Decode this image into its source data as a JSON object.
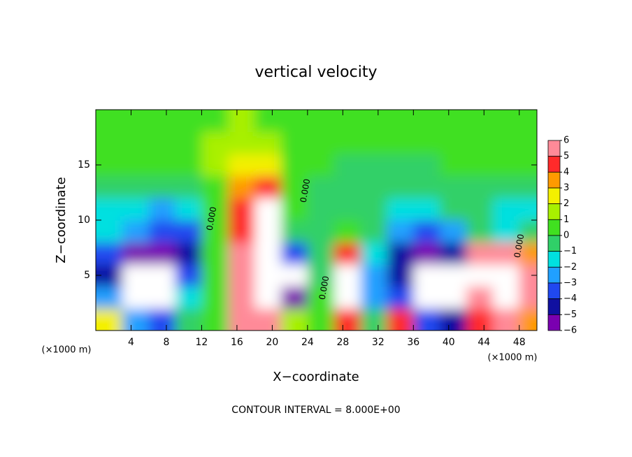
{
  "chart_data": {
    "type": "contour",
    "title": "vertical velocity",
    "x_label": "X−coordinate",
    "y_label": "Z−coordinate",
    "x_unit": "(×1000 m)",
    "footer": "CONTOUR INTERVAL = 8.000E+00",
    "contour_label": "0.000",
    "xlim": [
      0,
      50
    ],
    "ylim": [
      0,
      20
    ],
    "xticks": [
      4,
      8,
      12,
      16,
      20,
      24,
      28,
      32,
      36,
      40,
      44,
      48
    ],
    "yticks": [
      5,
      10,
      15
    ],
    "x": [
      1.5,
      4.5,
      7.5,
      10.5,
      13.5,
      16.5,
      19.5,
      22.5,
      25.5,
      28.5,
      31.5,
      34.5,
      37.5,
      40.5,
      43.5,
      46.5,
      49.5
    ],
    "y": [
      1,
      3,
      5,
      7,
      9,
      11,
      13,
      15,
      17,
      19
    ],
    "z": [
      [
        2,
        -3,
        -4,
        -1,
        0,
        5,
        5,
        1,
        0,
        4,
        -1,
        4,
        -4,
        -5,
        4,
        6,
        3
      ],
      [
        -3,
        -8,
        -7,
        -2,
        0,
        6,
        9,
        -6,
        0,
        7,
        -3,
        -4,
        -8,
        -8,
        6,
        9,
        5
      ],
      [
        -5,
        -9,
        -8,
        -4,
        0,
        6,
        10,
        -7,
        -1,
        8,
        -3,
        -5,
        -9,
        -9,
        7,
        9,
        5
      ],
      [
        -4,
        -6,
        -6,
        -5,
        0,
        5,
        10,
        -4,
        -1,
        4,
        -2,
        -5,
        -6,
        -5,
        5,
        6,
        3
      ],
      [
        -2,
        -3,
        -4,
        -4,
        0,
        4,
        10,
        -1,
        -1,
        0,
        -1,
        -3,
        -4,
        -3,
        -1,
        -2,
        -1
      ],
      [
        -2,
        -2,
        -3,
        -2,
        0,
        4,
        9,
        0,
        -1,
        -1,
        -1,
        -2,
        -2,
        -1,
        -1,
        -2,
        -2
      ],
      [
        -1,
        -1,
        -1,
        -1,
        0,
        3,
        4,
        0,
        -1,
        -1,
        -1,
        -1,
        -1,
        -1,
        -1,
        -1,
        -1
      ],
      [
        0,
        0,
        0,
        0,
        1,
        2,
        2,
        0,
        0,
        -1,
        -1,
        -1,
        -1,
        0,
        0,
        0,
        0
      ],
      [
        0,
        0,
        0,
        0,
        1,
        1,
        1,
        0,
        0,
        0,
        0,
        0,
        0,
        0,
        0,
        0,
        0
      ],
      [
        0,
        0,
        0,
        0,
        0,
        1,
        0,
        0,
        0,
        0,
        0,
        0,
        0,
        0,
        0,
        0,
        0
      ]
    ],
    "colorbar_ticks": [
      6,
      5,
      4,
      3,
      2,
      1,
      0,
      {
        "value": -1,
        "label": "−1"
      },
      {
        "value": -2,
        "label": "−2"
      },
      {
        "value": -3,
        "label": "−3"
      },
      {
        "value": -4,
        "label": "−4"
      },
      {
        "value": -5,
        "label": "−5"
      },
      {
        "value": -6,
        "label": "−6"
      }
    ],
    "colors": [
      "#ff8a98",
      "#ff2a2a",
      "#ff9a00",
      "#f4f000",
      "#a8f000",
      "#40e020",
      "#30d068",
      "#00e0e0",
      "#20a0ff",
      "#2048f0",
      "#1010a0",
      "#7a00b0"
    ],
    "out_of_range_color": "#ffffff"
  }
}
